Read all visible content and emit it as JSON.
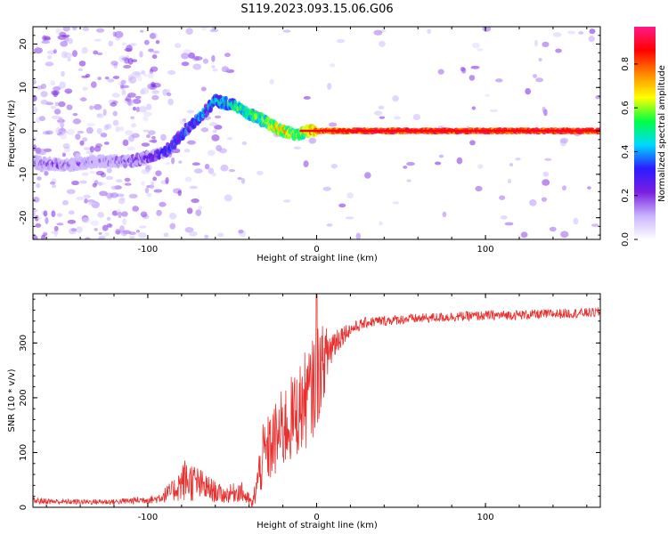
{
  "figure": {
    "title": "S119.2023.093.15.06.G06"
  },
  "colors": {
    "snr_line": "#e8302e",
    "colormap": [
      "#ffffff",
      "#c9b3ff",
      "#7a1fe0",
      "#2b1bff",
      "#00d9ff",
      "#00ff44",
      "#ffff00",
      "#ff8800",
      "#ff0000",
      "#ff1a88"
    ]
  },
  "chart_data": [
    {
      "type": "heatmap",
      "name": "spectrogram",
      "xlabel": "Height of straight line (km)",
      "ylabel": "Frequency (Hz)",
      "xlim": [
        -168,
        168
      ],
      "ylim": [
        -25,
        24
      ],
      "xticks": [
        -100,
        0,
        100
      ],
      "yticks": [
        -20,
        -10,
        0,
        10,
        20
      ],
      "colorbar": {
        "label": "Normalized spectral amplitude",
        "range": [
          0,
          0.97
        ],
        "ticks": [
          "0.0",
          "0.2",
          "0.4",
          "0.6",
          "0.8"
        ]
      },
      "ridge": {
        "description_points_x": [
          -168,
          -150,
          -130,
          -110,
          -100,
          -90,
          -80,
          -70,
          -60,
          -50,
          -40,
          -30,
          -20,
          -12,
          -5,
          0,
          10,
          30,
          60,
          100,
          140,
          168
        ],
        "frequency_hz": [
          -7,
          -8,
          -7,
          -7,
          -6,
          -5,
          -1,
          3,
          7,
          6,
          4,
          2,
          0,
          -1,
          0,
          0,
          0,
          0,
          0,
          0,
          0,
          0
        ],
        "amplitude": [
          0.15,
          0.15,
          0.1,
          0.2,
          0.25,
          0.3,
          0.35,
          0.4,
          0.45,
          0.5,
          0.55,
          0.6,
          0.75,
          0.6,
          0.7,
          0.85,
          0.85,
          0.9,
          0.9,
          0.9,
          0.9,
          0.9
        ]
      }
    },
    {
      "type": "line",
      "name": "snr",
      "xlabel": "Height of straight line (km)",
      "ylabel": "SNR (10 * v/v)",
      "xlim": [
        -168,
        168
      ],
      "ylim": [
        0,
        390
      ],
      "xticks": [
        -100,
        0,
        100
      ],
      "yticks": [
        0,
        100,
        200,
        300
      ],
      "envelope": {
        "x": [
          -168,
          -150,
          -120,
          -95,
          -85,
          -78,
          -72,
          -65,
          -55,
          -45,
          -38,
          -32,
          -25,
          -18,
          -12,
          -8,
          -3,
          0,
          5,
          10,
          15,
          20,
          30,
          50,
          80,
          100,
          130,
          168
        ],
        "base": [
          12,
          10,
          10,
          15,
          30,
          50,
          45,
          35,
          22,
          30,
          5,
          90,
          120,
          150,
          170,
          190,
          210,
          240,
          270,
          300,
          315,
          325,
          338,
          343,
          348,
          350,
          352,
          356
        ],
        "amp": [
          6,
          5,
          5,
          8,
          20,
          40,
          35,
          25,
          15,
          20,
          10,
          60,
          70,
          80,
          80,
          90,
          90,
          100,
          60,
          35,
          20,
          12,
          10,
          9,
          9,
          9,
          9,
          9
        ]
      },
      "peak_near_zero": 390
    }
  ]
}
